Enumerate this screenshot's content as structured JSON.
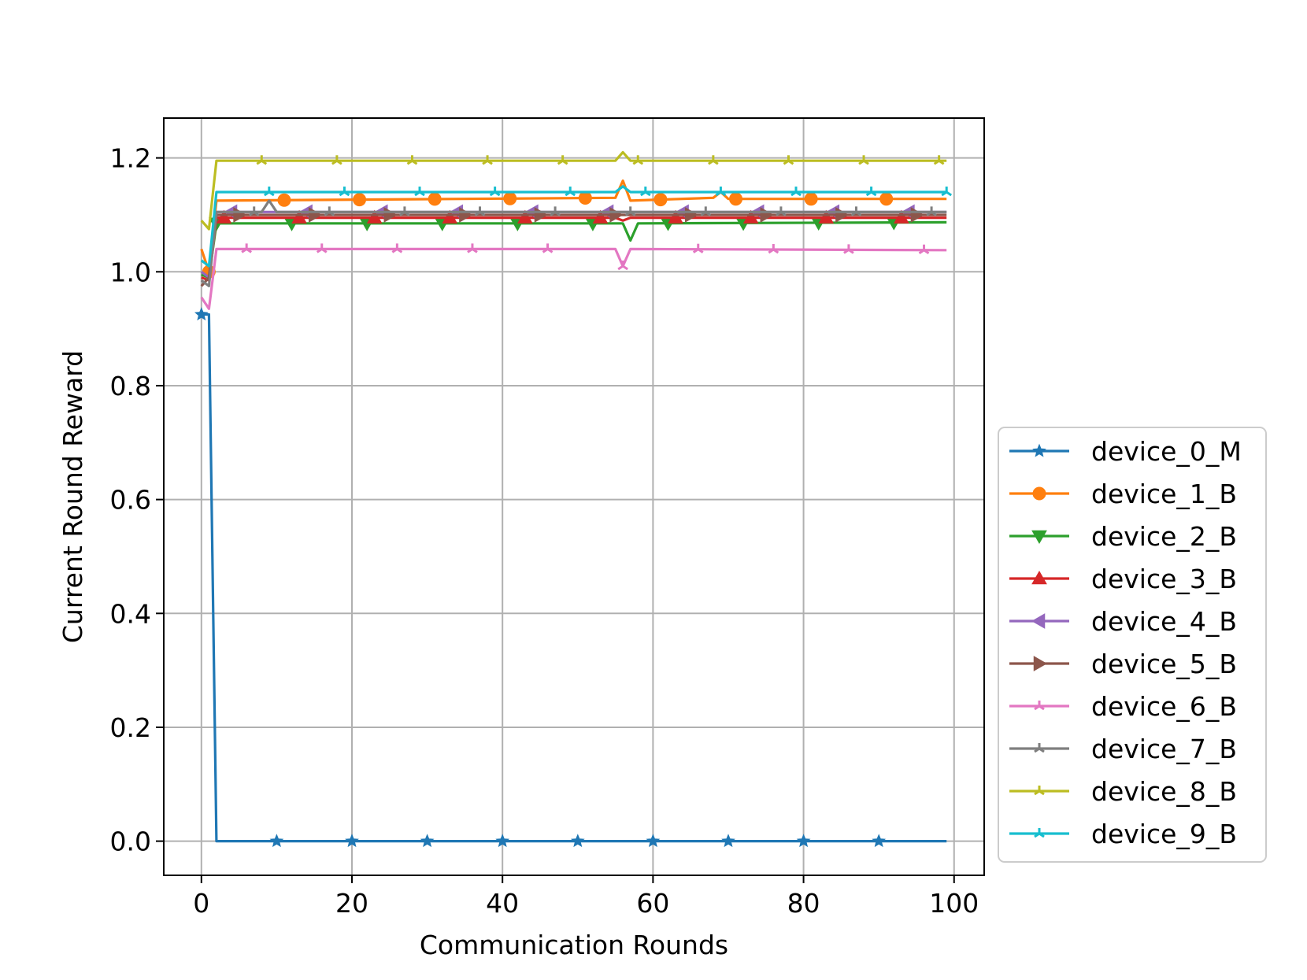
{
  "chart_data": {
    "type": "line",
    "title": "",
    "xlabel": "Communication Rounds",
    "ylabel": "Current Round Reward",
    "xlim": [
      -5,
      104
    ],
    "ylim": [
      -0.06,
      1.27
    ],
    "xticks": [
      0,
      20,
      40,
      60,
      80,
      100
    ],
    "yticks": [
      0.0,
      0.2,
      0.4,
      0.6,
      0.8,
      1.0,
      1.2
    ],
    "xtick_labels": [
      "0",
      "20",
      "40",
      "60",
      "80",
      "100"
    ],
    "ytick_labels": [
      "0.0",
      "0.2",
      "0.4",
      "0.6",
      "0.8",
      "1.0",
      "1.2"
    ],
    "grid": true,
    "legend_position": "outside-right",
    "x_range": [
      0,
      99
    ],
    "series": [
      {
        "name": "device_0_M",
        "color": "#1f77b4",
        "marker": "star",
        "points": [
          [
            0,
            0.925
          ],
          [
            1,
            0.925
          ],
          [
            2,
            0.0
          ],
          [
            99,
            0.0
          ]
        ]
      },
      {
        "name": "device_1_B",
        "color": "#ff7f0e",
        "marker": "circle",
        "points": [
          [
            0,
            1.04
          ],
          [
            1,
            1.0
          ],
          [
            2,
            1.125
          ],
          [
            55,
            1.13
          ],
          [
            56,
            1.16
          ],
          [
            57,
            1.125
          ],
          [
            68,
            1.13
          ],
          [
            69,
            1.14
          ],
          [
            70,
            1.128
          ],
          [
            99,
            1.128
          ]
        ]
      },
      {
        "name": "device_2_B",
        "color": "#2ca02c",
        "marker": "triangle-down",
        "points": [
          [
            0,
            0.995
          ],
          [
            1,
            0.99
          ],
          [
            2,
            1.085
          ],
          [
            56,
            1.085
          ],
          [
            57,
            1.055
          ],
          [
            58,
            1.085
          ],
          [
            99,
            1.087
          ]
        ]
      },
      {
        "name": "device_3_B",
        "color": "#d62728",
        "marker": "triangle-up",
        "points": [
          [
            0,
            0.99
          ],
          [
            1,
            0.985
          ],
          [
            2,
            1.095
          ],
          [
            55,
            1.095
          ],
          [
            56,
            1.09
          ],
          [
            57,
            1.095
          ],
          [
            99,
            1.095
          ]
        ]
      },
      {
        "name": "device_4_B",
        "color": "#9467bd",
        "marker": "triangle-left",
        "points": [
          [
            0,
            1.0
          ],
          [
            1,
            0.99
          ],
          [
            2,
            1.105
          ],
          [
            99,
            1.105
          ]
        ]
      },
      {
        "name": "device_5_B",
        "color": "#8c564b",
        "marker": "triangle-right",
        "points": [
          [
            0,
            0.975
          ],
          [
            1,
            0.99
          ],
          [
            2,
            1.1
          ],
          [
            99,
            1.1
          ]
        ]
      },
      {
        "name": "device_6_B",
        "color": "#e377c2",
        "marker": "tri",
        "points": [
          [
            0,
            0.955
          ],
          [
            1,
            0.935
          ],
          [
            2,
            1.04
          ],
          [
            55,
            1.04
          ],
          [
            56,
            1.01
          ],
          [
            57,
            1.04
          ],
          [
            99,
            1.038
          ]
        ]
      },
      {
        "name": "device_7_B",
        "color": "#7f7f7f",
        "marker": "tri",
        "points": [
          [
            0,
            0.985
          ],
          [
            1,
            0.975
          ],
          [
            2,
            1.105
          ],
          [
            8,
            1.105
          ],
          [
            9,
            1.125
          ],
          [
            10,
            1.105
          ],
          [
            99,
            1.105
          ]
        ]
      },
      {
        "name": "device_8_B",
        "color": "#bcbd22",
        "marker": "tri",
        "points": [
          [
            0,
            1.09
          ],
          [
            1,
            1.075
          ],
          [
            2,
            1.195
          ],
          [
            55,
            1.195
          ],
          [
            56,
            1.21
          ],
          [
            57,
            1.195
          ],
          [
            99,
            1.195
          ]
        ]
      },
      {
        "name": "device_9_B",
        "color": "#17becf",
        "marker": "tri",
        "points": [
          [
            0,
            1.02
          ],
          [
            1,
            1.01
          ],
          [
            2,
            1.14
          ],
          [
            55,
            1.14
          ],
          [
            56,
            1.15
          ],
          [
            57,
            1.14
          ],
          [
            99,
            1.14
          ]
        ]
      }
    ]
  }
}
